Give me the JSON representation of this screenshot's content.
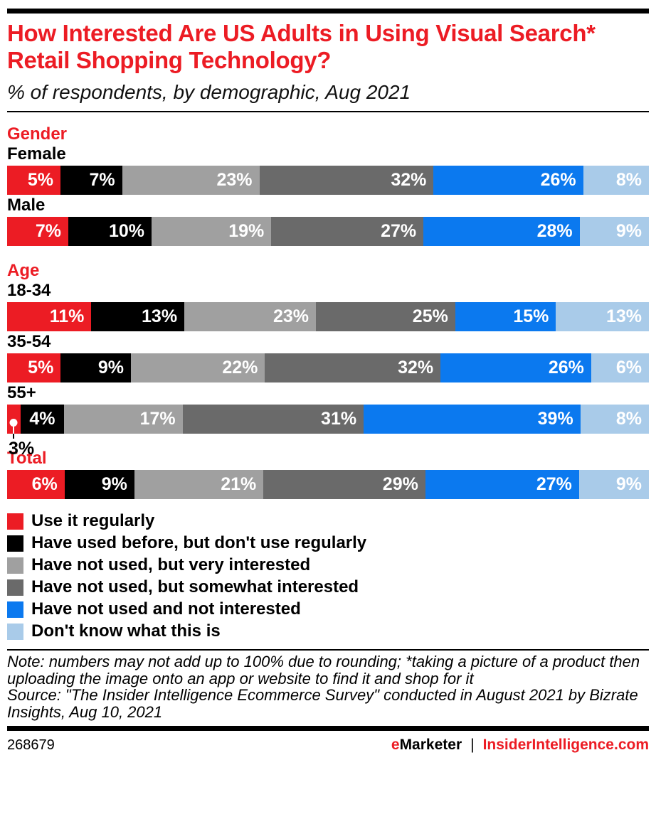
{
  "header": {
    "title": "How Interested Are US Adults in Using Visual Search* Retail Shopping Technology?",
    "subtitle": "% of respondents, by demographic, Aug 2021"
  },
  "chart_data": {
    "type": "bar",
    "variant": "horizontal-stacked",
    "unit": "%",
    "value_range": [
      0,
      100
    ],
    "legend_position": "bottom-left",
    "series_names": [
      "Use it regularly",
      "Have used before, but don't use regularly",
      "Have not used, but very interested",
      "Have not used, but somewhat interested",
      "Have not used and not interested",
      "Don't know what this is"
    ],
    "series_colors": [
      "#ec1c24",
      "#000000",
      "#a0a0a0",
      "#6a6a6a",
      "#0b79ef",
      "#a9cbe9"
    ],
    "groups": [
      {
        "section": "Gender",
        "rows": [
          {
            "label": "Female",
            "values": [
              5,
              7,
              23,
              32,
              26,
              8
            ]
          },
          {
            "label": "Male",
            "values": [
              7,
              10,
              19,
              27,
              28,
              9
            ]
          }
        ]
      },
      {
        "section": "Age",
        "rows": [
          {
            "label": "18-34",
            "values": [
              11,
              13,
              23,
              25,
              15,
              13
            ]
          },
          {
            "label": "35-54",
            "values": [
              5,
              9,
              22,
              32,
              26,
              6
            ]
          },
          {
            "label": "55+",
            "values": [
              3,
              4,
              17,
              31,
              39,
              8
            ],
            "callout_index": 0
          }
        ]
      },
      {
        "section": "Total",
        "rows": [
          {
            "label": "",
            "values": [
              6,
              9,
              21,
              29,
              27,
              9
            ]
          }
        ]
      }
    ]
  },
  "notes": {
    "note": "Note: numbers may not add up to 100% due to rounding; *taking a picture of a product then uploading the image onto an app or website to find it and shop for it",
    "source": "Source: \"The Insider Intelligence Ecommerce Survey\" conducted in August 2021 by Bizrate Insights, Aug 10, 2021"
  },
  "footer": {
    "chart_id": "268679",
    "brand_e": "e",
    "brand_rest": "Marketer",
    "separator": "|",
    "site": "InsiderIntelligence.com"
  },
  "colors": {
    "accent_red": "#ec1c24",
    "rule_black": "#000000"
  }
}
